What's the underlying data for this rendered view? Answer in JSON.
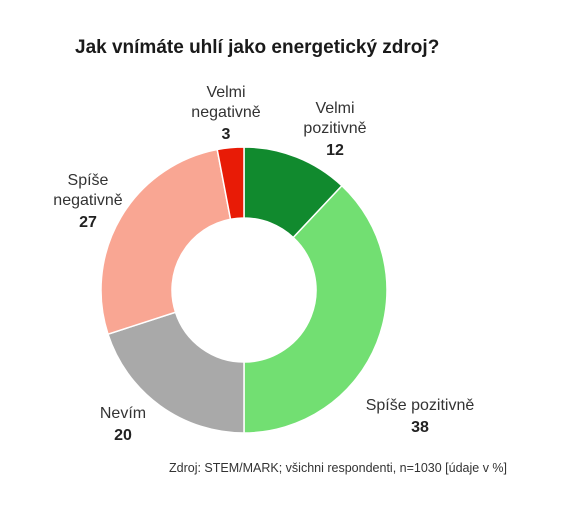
{
  "chart_data": {
    "type": "pie",
    "title": "Jak vnímáte uhlí jako energetický zdroj?",
    "categories": [
      "Velmi pozitivně",
      "Spíše pozitivně",
      "Nevím",
      "Spíše negativně",
      "Velmi negativně"
    ],
    "values": [
      12,
      38,
      20,
      27,
      3
    ],
    "value_labels": [
      "12",
      "38",
      "20",
      "27",
      "3"
    ],
    "colors": [
      "#118a2e",
      "#72df72",
      "#a9a9a9",
      "#f9a693",
      "#e81b06"
    ],
    "donut": true
  },
  "source": "Zdroj: STEM/MARK; všichni respondenti, n=1030 [údaje v %]"
}
